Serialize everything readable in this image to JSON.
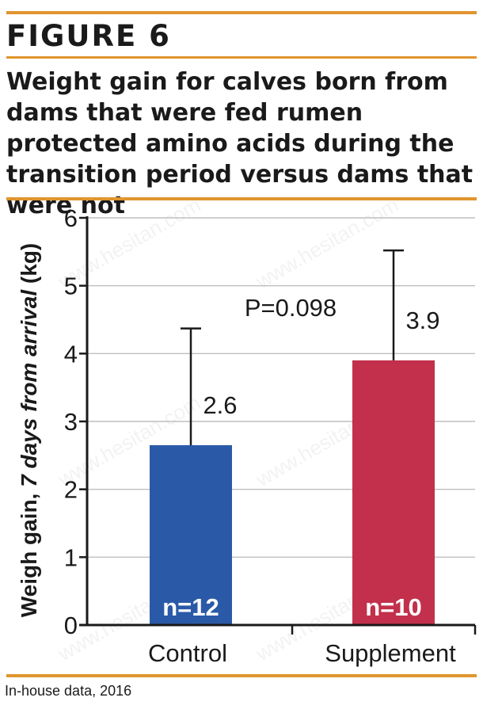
{
  "figure": {
    "label": "FIGURE 6",
    "title": "Weight gain for calves born from dams that were fed rumen protected amino acids during the transition period versus dams that were not"
  },
  "source": "In-house data, 2016",
  "watermark": "www.hesitan.com",
  "chart_data": {
    "type": "bar",
    "categories": [
      "Control",
      "Supplement"
    ],
    "values": [
      2.65,
      3.9
    ],
    "value_labels": [
      "2.6",
      "3.9"
    ],
    "error_upper": [
      4.37,
      5.52
    ],
    "n_labels": [
      "n=12",
      "n=10"
    ],
    "bar_colors": [
      "#2a5aa7",
      "#c2304b"
    ],
    "annotation": "P=0.098",
    "ylabel_parts": [
      "Weigh gain, ",
      "7 days from arrival",
      " (kg)"
    ],
    "yticks": [
      0,
      1,
      2,
      3,
      4,
      5,
      6
    ],
    "ylim": [
      0,
      6
    ],
    "grid": true
  }
}
